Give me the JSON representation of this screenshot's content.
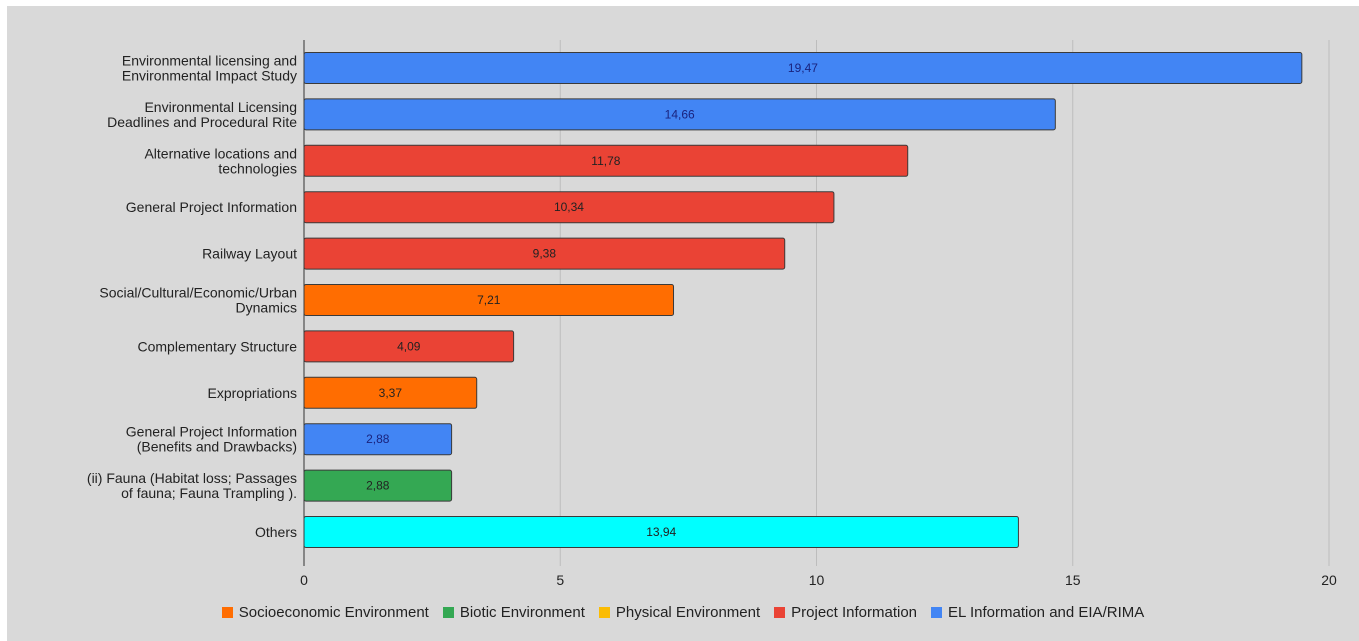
{
  "chart_data": {
    "type": "bar",
    "orientation": "horizontal",
    "categories": [
      [
        "Environmental licensing and",
        "Environmental Impact Study"
      ],
      [
        "Environmental Licensing",
        "Deadlines and Procedural Rite"
      ],
      [
        "Alternative locations and",
        "technologies"
      ],
      [
        "General Project Information"
      ],
      [
        "Railway Layout"
      ],
      [
        "Social/Cultural/Economic/Urban",
        "Dynamics"
      ],
      [
        "Complementary Structure"
      ],
      [
        "Expropriations"
      ],
      [
        "General Project Information",
        "(Benefits and Drawbacks)"
      ],
      [
        "(ii) Fauna (Habitat loss; Passages",
        "of fauna; Fauna Trampling )."
      ],
      [
        "Others"
      ]
    ],
    "values": [
      19.47,
      14.66,
      11.78,
      10.34,
      9.38,
      7.21,
      4.09,
      3.37,
      2.88,
      2.88,
      13.94
    ],
    "value_labels": [
      "19,47",
      "14,66",
      "11,78",
      "10,34",
      "9,38",
      "7,21",
      "4,09",
      "3,37",
      "2,88",
      "2,88",
      "13,94"
    ],
    "bar_colors": [
      "#4285f4",
      "#4285f4",
      "#ea4335",
      "#ea4335",
      "#ea4335",
      "#ff6d01",
      "#ea4335",
      "#ff6d01",
      "#4285f4",
      "#34a853",
      "#00ffff"
    ],
    "xlim": [
      0,
      20
    ],
    "xticks": [
      0,
      5,
      10,
      15,
      20
    ],
    "grid": true,
    "legend_position": "bottom",
    "legend": [
      {
        "name": "Socioeconomic Environment",
        "color": "#ff6d01"
      },
      {
        "name": "Biotic Environment",
        "color": "#34a853"
      },
      {
        "name": "Physical Environment",
        "color": "#fbbc04"
      },
      {
        "name": "Project Information",
        "color": "#ea4335"
      },
      {
        "name": "EL Information and EIA/RIMA",
        "color": "#4285f4"
      }
    ]
  }
}
